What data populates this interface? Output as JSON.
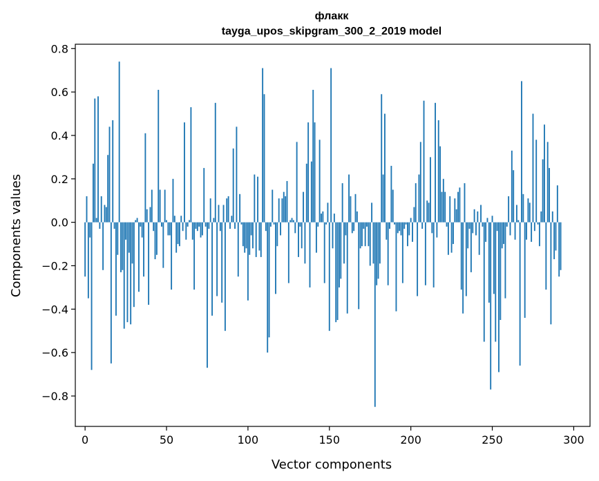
{
  "chart_data": {
    "type": "bar",
    "title": "флакк",
    "subtitle": "tayga_upos_skipgram_300_2_2019 model",
    "xlabel": "Vector components",
    "ylabel": "Components values",
    "xlim": [
      -6,
      310
    ],
    "ylim": [
      -0.94,
      0.82
    ],
    "xticks": [
      0,
      50,
      100,
      150,
      200,
      250,
      300
    ],
    "yticks": [
      -0.8,
      -0.6,
      -0.4,
      -0.2,
      0.0,
      0.2,
      0.4,
      0.6,
      0.8
    ],
    "ytick_labels": [
      "−0.8",
      "−0.6",
      "−0.4",
      "−0.2",
      "0.0",
      "0.2",
      "0.4",
      "0.6",
      "0.8"
    ],
    "color": "#1f77b4",
    "values": [
      -0.25,
      0.12,
      -0.35,
      -0.07,
      -0.68,
      0.27,
      0.57,
      0.02,
      0.58,
      -0.03,
      0.12,
      -0.22,
      0.08,
      0.07,
      0.31,
      0.44,
      -0.65,
      0.47,
      -0.03,
      -0.43,
      -0.15,
      0.74,
      -0.23,
      -0.22,
      -0.49,
      -0.08,
      -0.46,
      -0.14,
      -0.47,
      -0.19,
      -0.39,
      0.01,
      0.02,
      -0.32,
      -0.02,
      -0.07,
      -0.25,
      0.41,
      0.06,
      -0.38,
      0.07,
      0.15,
      -0.04,
      -0.17,
      -0.15,
      0.61,
      0.15,
      -0.02,
      -0.21,
      0.15,
      0.01,
      -0.06,
      -0.06,
      -0.31,
      0.2,
      0.03,
      -0.14,
      -0.1,
      -0.11,
      0.03,
      -0.04,
      0.46,
      -0.08,
      -0.02,
      0.01,
      0.53,
      -0.08,
      -0.31,
      -0.03,
      -0.04,
      -0.02,
      -0.07,
      -0.06,
      0.25,
      -0.02,
      -0.67,
      -0.03,
      0.11,
      -0.43,
      0.02,
      0.55,
      -0.34,
      0.08,
      -0.04,
      -0.37,
      0.08,
      -0.5,
      0.11,
      0.12,
      -0.03,
      0.03,
      0.34,
      -0.03,
      0.44,
      -0.25,
      0.13,
      -0.01,
      -0.11,
      -0.14,
      -0.12,
      -0.36,
      -0.15,
      -0.06,
      -0.12,
      0.22,
      -0.16,
      0.21,
      -0.13,
      -0.16,
      0.71,
      0.59,
      -0.04,
      -0.6,
      -0.53,
      -0.02,
      0.15,
      -0.01,
      -0.33,
      -0.11,
      0.11,
      -0.06,
      0.11,
      0.14,
      0.12,
      0.19,
      -0.28,
      0.01,
      0.02,
      0.01,
      -0.05,
      0.37,
      -0.16,
      -0.02,
      -0.12,
      0.14,
      -0.19,
      0.27,
      0.46,
      -0.3,
      0.28,
      0.61,
      0.46,
      -0.14,
      -0.02,
      0.38,
      0.04,
      0.05,
      -0.28,
      -0.01,
      0.09,
      -0.5,
      0.71,
      -0.12,
      0.04,
      -0.46,
      -0.45,
      -0.3,
      -0.26,
      0.18,
      -0.19,
      -0.06,
      -0.42,
      0.22,
      0.12,
      -0.05,
      -0.04,
      0.13,
      0.05,
      -0.4,
      -0.12,
      -0.11,
      -0.03,
      -0.11,
      -0.02,
      -0.11,
      -0.2,
      0.09,
      -0.19,
      -0.85,
      -0.29,
      -0.26,
      -0.19,
      0.59,
      0.22,
      0.5,
      -0.08,
      -0.29,
      -0.03,
      0.26,
      0.15,
      -0.01,
      -0.41,
      -0.05,
      -0.04,
      -0.06,
      -0.28,
      -0.03,
      -0.01,
      -0.11,
      -0.06,
      0.02,
      -0.09,
      0.07,
      0.18,
      -0.34,
      0.22,
      0.37,
      -0.03,
      0.56,
      -0.29,
      0.1,
      0.09,
      0.3,
      -0.05,
      -0.3,
      0.55,
      -0.07,
      0.47,
      0.35,
      0.14,
      0.2,
      0.14,
      -0.02,
      -0.15,
      0.12,
      -0.14,
      -0.1,
      0.11,
      0.06,
      0.14,
      0.16,
      -0.31,
      -0.42,
      0.18,
      -0.34,
      -0.12,
      -0.03,
      -0.23,
      -0.05,
      0.06,
      -0.06,
      0.05,
      -0.15,
      0.08,
      -0.02,
      -0.55,
      -0.09,
      0.02,
      -0.37,
      -0.77,
      0.03,
      -0.33,
      -0.55,
      -0.04,
      -0.69,
      -0.45,
      -0.12,
      -0.1,
      -0.35,
      -0.02,
      0.12,
      -0.06,
      0.33,
      0.24,
      -0.08,
      0.08,
      0.01,
      -0.66,
      0.65,
      0.13,
      -0.44,
      -0.08,
      0.11,
      0.09,
      -0.09,
      0.5,
      -0.04,
      0.38,
      -0.01,
      -0.11,
      0.05,
      0.29,
      0.45,
      -0.31,
      0.37,
      0.25,
      -0.47,
      0.05,
      -0.17,
      -0.13,
      0.17,
      -0.25,
      -0.22
    ]
  }
}
